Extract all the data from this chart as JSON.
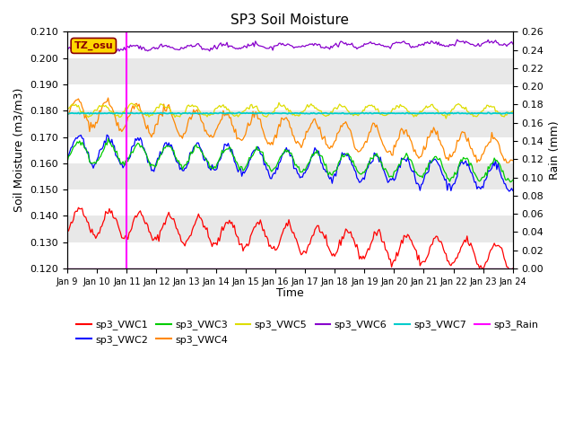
{
  "title": "SP3 Soil Moisture",
  "xlabel": "Time",
  "ylabel_left": "Soil Moisture (m3/m3)",
  "ylabel_right": "Rain (mm)",
  "ylim_left": [
    0.12,
    0.21
  ],
  "ylim_right": [
    0.0,
    0.26
  ],
  "yticks_left": [
    0.12,
    0.13,
    0.14,
    0.15,
    0.16,
    0.17,
    0.18,
    0.19,
    0.2,
    0.21
  ],
  "yticks_right": [
    0.0,
    0.02,
    0.04,
    0.06,
    0.08,
    0.1,
    0.12,
    0.14,
    0.16,
    0.18,
    0.2,
    0.22,
    0.24,
    0.26
  ],
  "xtick_labels": [
    "Jan 9",
    "Jan 10",
    "Jan 11",
    "Jan 12",
    "Jan 13",
    "Jan 14",
    "Jan 15",
    "Jan 16",
    "Jan 17",
    "Jan 18",
    "Jan 19",
    "Jan 20",
    "Jan 21",
    "Jan 22",
    "Jan 23",
    "Jan 24"
  ],
  "vline_day": 2,
  "annotation_text": "TZ_osu",
  "annotation_box_color": "#FFD700",
  "annotation_text_color": "#8B0000",
  "background_color": "#E8E8E8",
  "colors": {
    "VWC1": "#FF0000",
    "VWC2": "#0000FF",
    "VWC3": "#00CC00",
    "VWC4": "#FF8800",
    "VWC5": "#DDDD00",
    "VWC6": "#8800CC",
    "VWC7": "#00CCCC",
    "Rain": "#FF00FF"
  }
}
